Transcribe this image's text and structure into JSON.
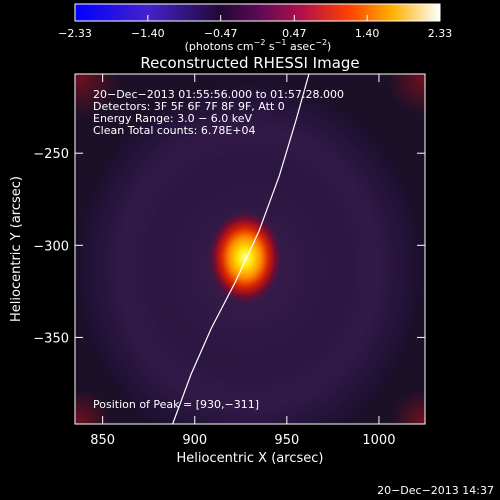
{
  "chart_data": {
    "type": "heatmap",
    "title": "Reconstructed RHESSI Image",
    "xlabel": "Heliocentric X (arcsec)",
    "ylabel": "Heliocentric Y (arcsec)",
    "xlim": [
      835,
      1025
    ],
    "ylim": [
      -397,
      -207
    ],
    "xticks": [
      850,
      900,
      950,
      1000
    ],
    "xtick_labels": [
      "850",
      "900",
      "950",
      "1000"
    ],
    "yticks": [
      -250,
      -300,
      -350
    ],
    "ytick_labels": [
      "−250",
      "−300",
      "−350"
    ],
    "colorbar": {
      "min": -2.33,
      "max": 2.33,
      "ticks": [
        -2.33,
        -1.4,
        -0.47,
        0.47,
        1.4,
        2.33
      ],
      "tick_labels": [
        "−2.33",
        "−1.40",
        "−0.47",
        "0.47",
        "1.40",
        "2.33"
      ],
      "unit_label": "(photons cm",
      "unit_exp1": "−2",
      "unit_mid": " s",
      "unit_exp2": "−1",
      "unit_mid2": " asec",
      "unit_exp3": "−2",
      "unit_end": ")"
    },
    "annotations": [
      "20−Dec−2013 01:55:56.000 to 01:57:28.000",
      "Detectors: 3F 5F 6F 7F 8F 9F, Att 0",
      "Energy Range: 3.0 − 6.0 keV",
      "Clean     Total counts: 6.78E+04"
    ],
    "peak_label": "Position of Peak = [930,−311]",
    "peak": {
      "x": 930,
      "y": -311,
      "value": 2.33
    },
    "limb_curve": [
      {
        "x": 888,
        "y": -397
      },
      {
        "x": 898,
        "y": -370
      },
      {
        "x": 909,
        "y": -345
      },
      {
        "x": 922,
        "y": -320
      },
      {
        "x": 935,
        "y": -292
      },
      {
        "x": 946,
        "y": -262
      },
      {
        "x": 955,
        "y": -232
      },
      {
        "x": 962,
        "y": -207
      }
    ],
    "background_level": 0.1
  },
  "footer": {
    "timestamp": "20−Dec−2013 14:37"
  }
}
